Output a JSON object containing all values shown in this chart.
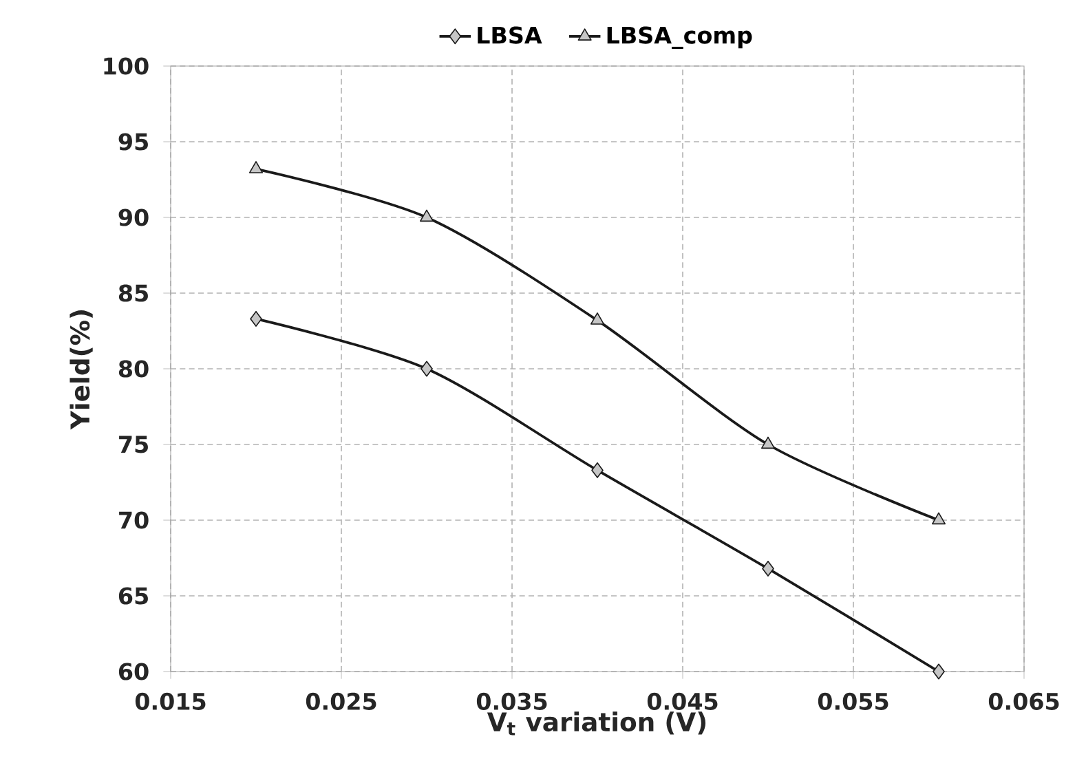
{
  "chart_data": {
    "type": "line",
    "xlabel": "V$_{t}$ variation (V)",
    "ylabel": "Yield(%)",
    "xlim": [
      0.015,
      0.065
    ],
    "xticks": [
      0.015,
      0.025,
      0.035,
      0.045,
      0.055,
      0.065
    ],
    "ylim": [
      60,
      100
    ],
    "yticks": [
      60,
      65,
      70,
      75,
      80,
      85,
      90,
      95,
      100
    ],
    "grid": true,
    "legend": "top",
    "line_style": "solid",
    "x": [
      0.02,
      0.03,
      0.04,
      0.05,
      0.06
    ],
    "series": [
      {
        "name": "LBSA",
        "color": "#1a1a1a",
        "marker": "diamond",
        "values": [
          83.3,
          80,
          73.3,
          66.8,
          60
        ]
      },
      {
        "name": "LBSA_comp",
        "color": "#1a1a1a",
        "marker": "triangle",
        "values": [
          93.2,
          90,
          83.2,
          75,
          70
        ]
      }
    ]
  }
}
